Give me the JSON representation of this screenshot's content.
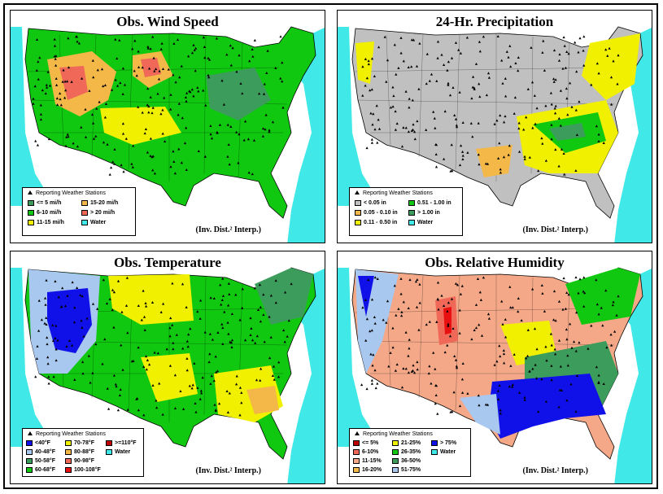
{
  "colors": {
    "ocean": "#40e8e8",
    "land_outside": "#ffffff",
    "border": "#000000"
  },
  "panels": [
    {
      "id": "wind",
      "title": "Obs. Wind Speed",
      "legend_header": "Reporting Weather Stations",
      "interp": "(Inv. Dist.² Interp.)",
      "base_color": "#10c810",
      "legend": [
        {
          "label": "<= 5 mi/h",
          "color": "#3c9c5c"
        },
        {
          "label": "6-10 mi/h",
          "color": "#10c810"
        },
        {
          "label": "11-15 mi/h",
          "color": "#f0f000"
        },
        {
          "label": "15-20 mi/h",
          "color": "#f4b848"
        },
        {
          "label": "> 20 mi/h",
          "color": "#f06858"
        },
        {
          "label": "Water",
          "color": "#40e8e8"
        }
      ]
    },
    {
      "id": "precip",
      "title": "24-Hr. Precipitation",
      "legend_header": "Reporting Weather Stations",
      "interp": "(Inv. Dist.² Interp.)",
      "base_color": "#c0c0c0",
      "legend": [
        {
          "label": "< 0.05 in",
          "color": "#c0c0c0"
        },
        {
          "label": "0.05 - 0.10 in",
          "color": "#f4b848"
        },
        {
          "label": "0.11 - 0.50 in",
          "color": "#f0f000"
        },
        {
          "label": "0.51 - 1.00 in",
          "color": "#10c810"
        },
        {
          "label": "> 1.00 in",
          "color": "#3c9c5c"
        },
        {
          "label": "Water",
          "color": "#40e8e8"
        }
      ]
    },
    {
      "id": "temp",
      "title": "Obs. Temperature",
      "legend_header": "Reporting Weather Stations",
      "interp": "(Inv. Dist.² Interp.)",
      "base_color": "#10c810",
      "legend": [
        {
          "label": "<40°F",
          "color": "#1010e8"
        },
        {
          "label": "40-48°F",
          "color": "#a8c8f0"
        },
        {
          "label": "50-58°F",
          "color": "#3c9c5c"
        },
        {
          "label": "60-68°F",
          "color": "#10c810"
        },
        {
          "label": "70-78°F",
          "color": "#f0f000"
        },
        {
          "label": "80-88°F",
          "color": "#f4b848"
        },
        {
          "label": "90-98°F",
          "color": "#f06858"
        },
        {
          "label": "100-108°F",
          "color": "#e81010"
        },
        {
          "label": ">=110°F",
          "color": "#c00000"
        },
        {
          "label": "Water",
          "color": "#40e8e8"
        }
      ]
    },
    {
      "id": "rh",
      "title": "Obs. Relative Humidity",
      "legend_header": "Reporting Weather Stations",
      "interp": "(Inv. Dist.² Interp.)",
      "base_color": "#f4a888",
      "legend": [
        {
          "label": "<= 5%",
          "color": "#c00000"
        },
        {
          "label": "6-10%",
          "color": "#f06858"
        },
        {
          "label": "11-15%",
          "color": "#f4a888"
        },
        {
          "label": "16-20%",
          "color": "#f4b848"
        },
        {
          "label": "21-25%",
          "color": "#f0f000"
        },
        {
          "label": "26-35%",
          "color": "#10c810"
        },
        {
          "label": "36-50%",
          "color": "#3c9c5c"
        },
        {
          "label": "51-75%",
          "color": "#a8c8f0"
        },
        {
          "label": "> 75%",
          "color": "#1010e8"
        },
        {
          "label": "Water",
          "color": "#40e8e8"
        }
      ]
    }
  ]
}
